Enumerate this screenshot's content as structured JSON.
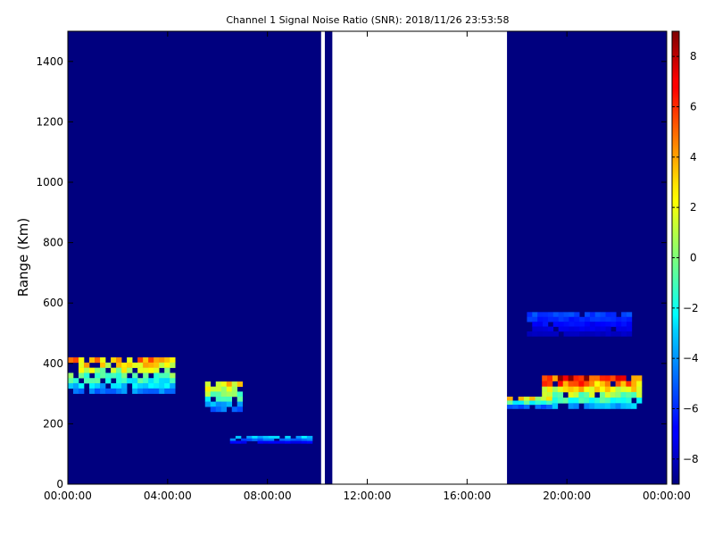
{
  "chart_data": {
    "type": "heatmap",
    "title": "Channel 1 Signal Noise Ratio (SNR): 2018/11/26 23:53:58",
    "xlabel": "",
    "ylabel": "Range (Km)",
    "x_ticks": [
      "00:00:00",
      "04:00:00",
      "08:00:00",
      "12:00:00",
      "16:00:00",
      "20:00:00",
      "00:00:00"
    ],
    "x_range_hours": [
      0,
      24
    ],
    "y_ticks": [
      0,
      200,
      400,
      600,
      800,
      1000,
      1200,
      1400
    ],
    "ylim": [
      0,
      1500
    ],
    "colorbar": {
      "colormap": "jet",
      "range": [
        -9,
        9
      ],
      "ticks": [
        -8,
        -6,
        -4,
        -2,
        0,
        2,
        4,
        6,
        8
      ]
    },
    "background_snr": -9,
    "data_gaps_hours": [
      [
        10.15,
        10.3
      ],
      [
        10.6,
        17.6
      ]
    ],
    "grid": false,
    "legend": "colorbar-right",
    "echo_features": [
      {
        "name": "morning-layer",
        "hours": [
          0.0,
          4.3
        ],
        "range_km": [
          300,
          420
        ],
        "peak_snr": 6
      },
      {
        "name": "dawn-descending-trace",
        "hours": [
          5.5,
          7.0
        ],
        "range_km": [
          240,
          340
        ],
        "peak_snr": 5
      },
      {
        "name": "low-level-trace",
        "hours": [
          6.5,
          9.8
        ],
        "range_km": [
          135,
          160
        ],
        "peak_snr": -2
      },
      {
        "name": "evening-layer",
        "hours": [
          19.0,
          23.0
        ],
        "range_km": [
          250,
          360
        ],
        "peak_snr": 9
      },
      {
        "name": "evening-rising-trace",
        "hours": [
          17.6,
          19.4
        ],
        "range_km": [
          250,
          290
        ],
        "peak_snr": 4
      },
      {
        "name": "upper-layer",
        "hours": [
          18.4,
          22.6
        ],
        "range_km": [
          490,
          570
        ],
        "peak_snr": -5
      }
    ]
  }
}
